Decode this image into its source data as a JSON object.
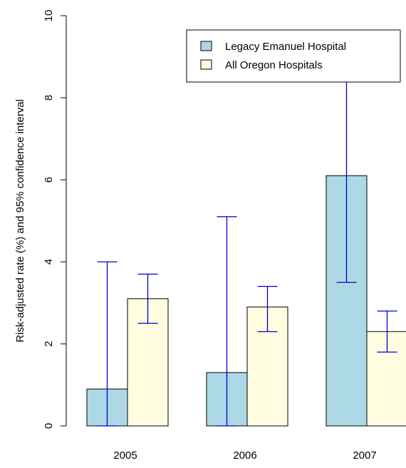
{
  "chart_data": {
    "type": "bar",
    "title": "",
    "xlabel": "",
    "ylabel": "Risk-adjusted rate (%) and 95% confidence interval",
    "ylim": [
      0,
      10
    ],
    "yticks": [
      0,
      2,
      4,
      6,
      8,
      10
    ],
    "categories": [
      "2005",
      "2006",
      "2007"
    ],
    "legend_position": "top-right",
    "grid": false,
    "series": [
      {
        "name": "Legacy Emanuel Hospital",
        "color": "#add8e6",
        "values": [
          0.9,
          1.3,
          6.1
        ],
        "ci_low": [
          0.0,
          0.0,
          3.5
        ],
        "ci_high": [
          4.0,
          5.1,
          8.6
        ]
      },
      {
        "name": "All Oregon Hospitals",
        "color": "#fffce0",
        "values": [
          3.1,
          2.9,
          2.3
        ],
        "ci_low": [
          2.5,
          2.3,
          1.8
        ],
        "ci_high": [
          3.7,
          3.4,
          2.8
        ]
      }
    ],
    "error_bar_color": "#0000cc"
  }
}
